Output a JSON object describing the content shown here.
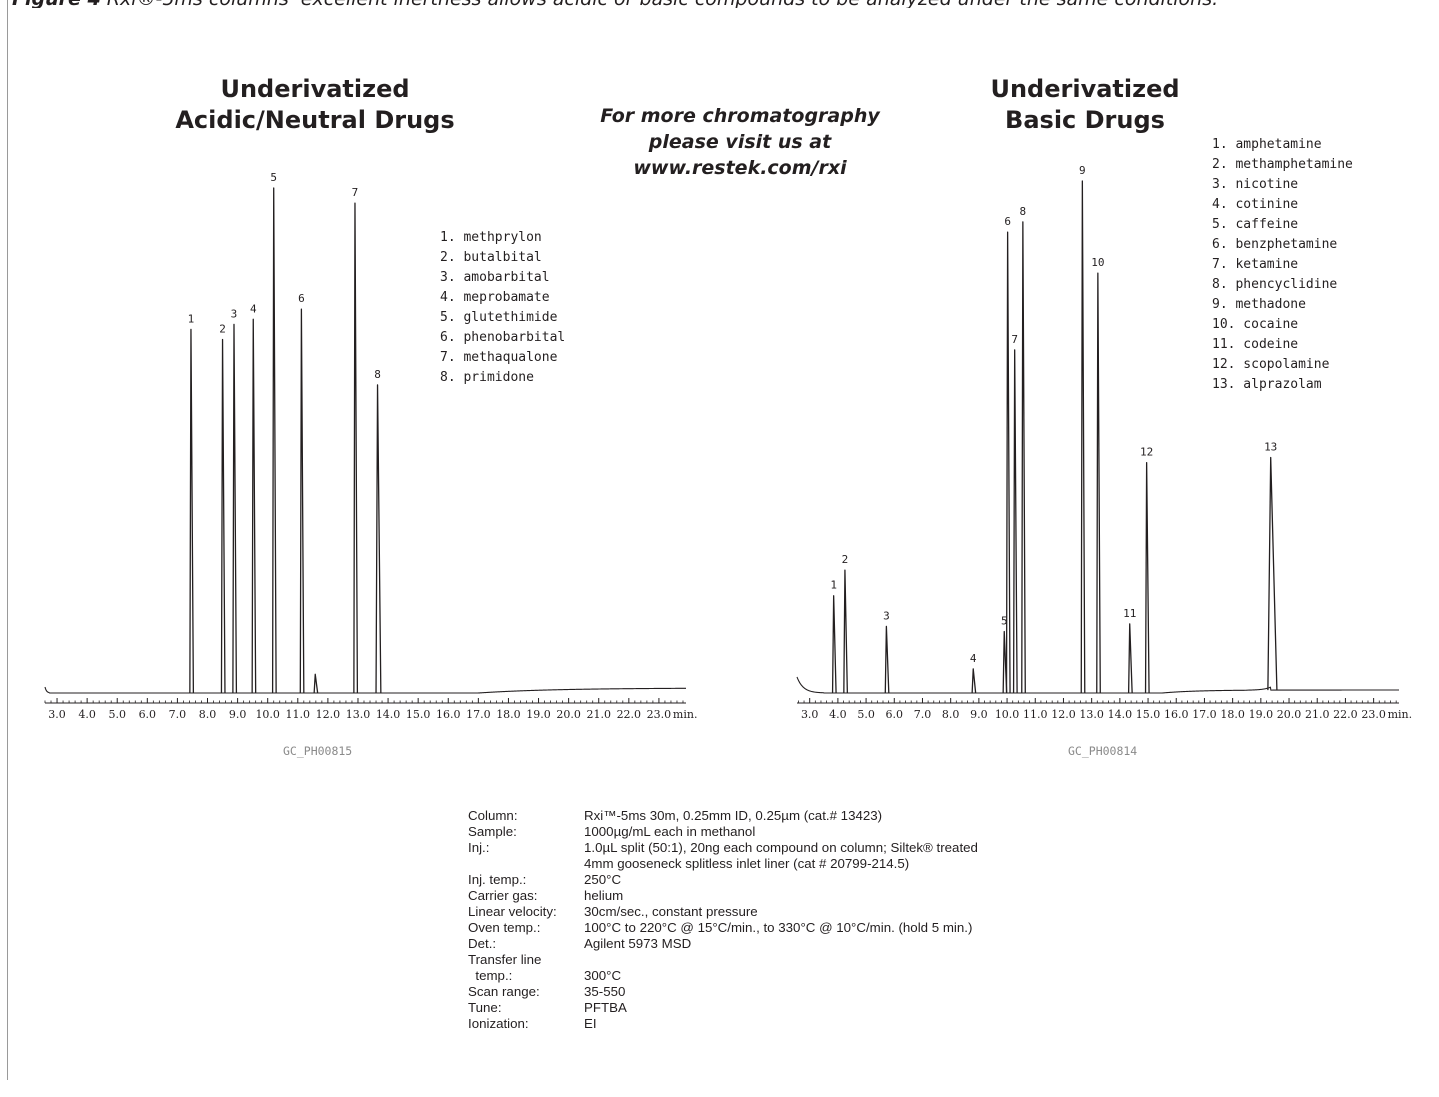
{
  "figure": {
    "caption_label": "Figure 4",
    "caption_text": " Rxi®-5ms columns’ excellent inertness allows acidic or basic compounds to be analyzed under the same conditions."
  },
  "promo": {
    "line1": "For more chromatography",
    "line2": "please visit us at",
    "line3": "www.restek.com/rxi"
  },
  "charts": [
    {
      "title_line1": "Underivatized",
      "title_line2": "Acidic/Neutral Drugs",
      "code": "GC_PH00815",
      "legend": [
        "1. methprylon",
        "2. butalbital",
        "3. amobarbital",
        "4. meprobamate",
        "5. glutethimide",
        "6. phenobarbital",
        "7. methaqualone",
        "8. primidone"
      ]
    },
    {
      "title_line1": "Underivatized",
      "title_line2": "Basic Drugs",
      "code": "GC_PH00814",
      "legend": [
        "1. amphetamine",
        "2. methamphetamine",
        "3. nicotine",
        "4. cotinine",
        "5. caffeine",
        "6. benzphetamine",
        "7. ketamine",
        "8. phencyclidine",
        "9. methadone",
        "10. cocaine",
        "11. codeine",
        "12. scopolamine",
        "13. alprazolam"
      ]
    }
  ],
  "chart_data": [
    {
      "type": "line",
      "x_unit": "min.",
      "xlim": [
        2.6,
        23.9
      ],
      "ylim": [
        0,
        100
      ],
      "x_ticks": [
        3,
        4,
        5,
        6,
        7,
        8,
        9,
        10,
        11,
        12,
        13,
        14,
        15,
        16,
        17,
        18,
        19,
        20,
        21,
        22,
        23
      ],
      "x_tick_labels": [
        "3.0",
        "4.0",
        "5.0",
        "6.0",
        "7.0",
        "8.0",
        "9.0",
        "10.0",
        "11.0",
        "12.0",
        "13.0",
        "14.0",
        "15.0",
        "16.0",
        "17.0",
        "18.0",
        "19.0",
        "20.0",
        "21.0",
        "22.0",
        "23.0"
      ],
      "peaks": [
        {
          "label": "1",
          "rt": 7.45,
          "height": 72,
          "width": 0.022
        },
        {
          "label": "2",
          "rt": 8.5,
          "height": 70,
          "width": 0.022
        },
        {
          "label": "3",
          "rt": 8.88,
          "height": 73,
          "width": 0.022
        },
        {
          "label": "4",
          "rt": 9.52,
          "height": 74,
          "width": 0.022
        },
        {
          "label": "5",
          "rt": 10.2,
          "height": 100,
          "width": 0.024
        },
        {
          "label": "6",
          "rt": 11.12,
          "height": 76,
          "width": 0.025
        },
        {
          "label": "",
          "rt": 11.58,
          "height": 3.7,
          "width": 0.02
        },
        {
          "label": "7",
          "rt": 12.9,
          "height": 97,
          "width": 0.028
        },
        {
          "label": "8",
          "rt": 13.65,
          "height": 61,
          "width": 0.05
        }
      ]
    },
    {
      "type": "line",
      "x_unit": "min.",
      "xlim": [
        2.55,
        23.9
      ],
      "ylim": [
        0,
        100
      ],
      "x_ticks": [
        3,
        4,
        5,
        6,
        7,
        8,
        9,
        10,
        11,
        12,
        13,
        14,
        15,
        16,
        17,
        18,
        19,
        20,
        21,
        22,
        23
      ],
      "x_tick_labels": [
        "3.0",
        "4.0",
        "5.0",
        "6.0",
        "7.0",
        "8.0",
        "9.0",
        "10.0",
        "11.0",
        "12.0",
        "13.0",
        "14.0",
        "15.0",
        "16.0",
        "17.0",
        "18.0",
        "19.0",
        "20.0",
        "21.0",
        "22.0",
        "23.0"
      ],
      "peaks": [
        {
          "label": "1",
          "rt": 3.85,
          "height": 19,
          "width": 0.02
        },
        {
          "label": "2",
          "rt": 4.25,
          "height": 24,
          "width": 0.02
        },
        {
          "label": "3",
          "rt": 5.72,
          "height": 13,
          "width": 0.02
        },
        {
          "label": "4",
          "rt": 8.8,
          "height": 4.7,
          "width": 0.022
        },
        {
          "label": "5",
          "rt": 9.9,
          "height": 12,
          "width": 0.02
        },
        {
          "label": "6",
          "rt": 10.02,
          "height": 90,
          "width": 0.02
        },
        {
          "label": "7",
          "rt": 10.27,
          "height": 67,
          "width": 0.02
        },
        {
          "label": "8",
          "rt": 10.56,
          "height": 92,
          "width": 0.02
        },
        {
          "label": "9",
          "rt": 12.67,
          "height": 100,
          "width": 0.024
        },
        {
          "label": "10",
          "rt": 13.22,
          "height": 82,
          "width": 0.024
        },
        {
          "label": "11",
          "rt": 14.35,
          "height": 13.5,
          "width": 0.03
        },
        {
          "label": "12",
          "rt": 14.95,
          "height": 45,
          "width": 0.03
        },
        {
          "label": "13",
          "rt": 19.35,
          "height": 46,
          "width": 0.1
        }
      ]
    }
  ],
  "conditions": [
    {
      "key": "Column:",
      "value": "Rxi™-5ms 30m, 0.25mm ID, 0.25µm (cat.# 13423)"
    },
    {
      "key": "Sample:",
      "value": "1000µg/mL each in methanol"
    },
    {
      "key": "Inj.:",
      "value": "1.0µL split (50:1), 20ng each compound on column; Siltek® treated"
    },
    {
      "key": "",
      "value": "4mm gooseneck splitless inlet liner (cat # 20799-214.5)"
    },
    {
      "key": "Inj. temp.:",
      "value": "250°C"
    },
    {
      "key": "Carrier gas:",
      "value": "helium"
    },
    {
      "key": "Linear velocity:",
      "value": "30cm/sec., constant pressure"
    },
    {
      "key": "Oven temp.:",
      "value": "100°C to 220°C @ 15°C/min., to 330°C @ 10°C/min. (hold 5 min.)"
    },
    {
      "key": "Det.:",
      "value": "Agilent 5973 MSD"
    },
    {
      "key": "Transfer line",
      "value": ""
    },
    {
      "key": "  temp.:",
      "value": "300°C"
    },
    {
      "key": "Scan range:",
      "value": "35-550"
    },
    {
      "key": "Tune:",
      "value": "PFTBA"
    },
    {
      "key": "Ionization:",
      "value": "EI"
    }
  ]
}
